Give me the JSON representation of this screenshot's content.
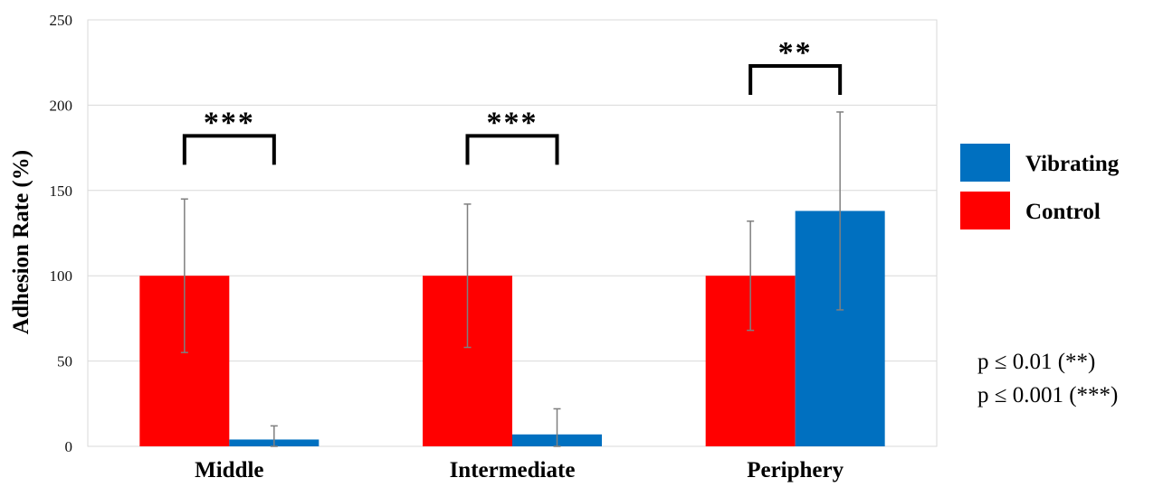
{
  "chart_data": {
    "type": "bar",
    "title": "",
    "xlabel": "",
    "ylabel": "Adhesion Rate (%)",
    "ylim": [
      0,
      250
    ],
    "yticks": [
      "0",
      "50",
      "100",
      "150",
      "200",
      "250"
    ],
    "categories": [
      "Middle",
      "Intermediate",
      "Periphery"
    ],
    "series": [
      {
        "name": "Control",
        "color": "#ff0000",
        "values": [
          100,
          100,
          100
        ],
        "errors": [
          45,
          42,
          32
        ]
      },
      {
        "name": "Vibrating",
        "color": "#0070c0",
        "values": [
          4,
          7,
          138
        ],
        "errors": [
          8,
          15,
          58
        ]
      }
    ],
    "legend_order": [
      "Vibrating",
      "Control"
    ],
    "legend_position": "right",
    "grid": true,
    "significance": [
      {
        "category": "Middle",
        "label": "***",
        "level": 182
      },
      {
        "category": "Intermediate",
        "label": "***",
        "level": 182
      },
      {
        "category": "Periphery",
        "label": "**",
        "level": 223
      }
    ],
    "notes": [
      "p ≤ 0.01 (**)",
      "p ≤ 0.001 (***)"
    ]
  }
}
